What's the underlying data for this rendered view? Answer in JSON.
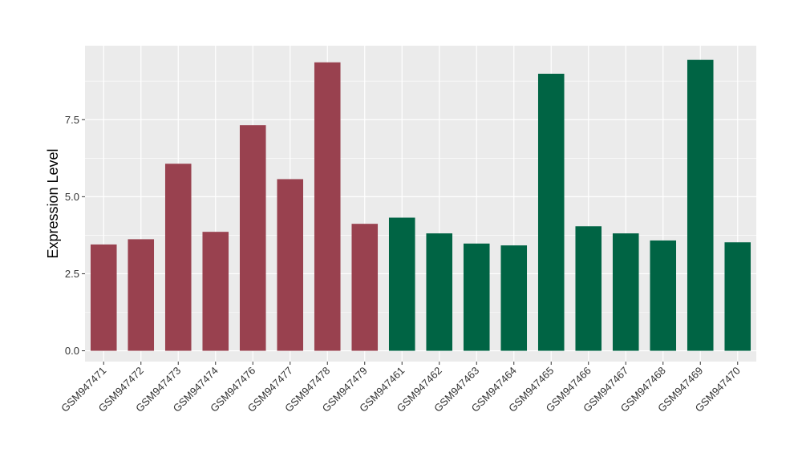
{
  "chart_data": {
    "type": "bar",
    "ylabel": "Expression Level",
    "xlabel": "",
    "ylim": [
      -0.35,
      9.9
    ],
    "yticks": [
      0.0,
      2.5,
      5.0,
      7.5
    ],
    "ytick_labels": [
      "0.0",
      "2.5",
      "5.0",
      "7.5"
    ],
    "grid": true,
    "categories": [
      "GSM947471",
      "GSM947472",
      "GSM947473",
      "GSM947474",
      "GSM947476",
      "GSM947477",
      "GSM947478",
      "GSM947479",
      "GSM947461",
      "GSM947462",
      "GSM947463",
      "GSM947464",
      "GSM947465",
      "GSM947466",
      "GSM947467",
      "GSM947468",
      "GSM947469",
      "GSM947470"
    ],
    "values": [
      3.45,
      3.62,
      6.07,
      3.86,
      7.32,
      5.57,
      9.36,
      4.12,
      4.32,
      3.81,
      3.48,
      3.42,
      8.99,
      4.04,
      3.81,
      3.58,
      9.44,
      3.52
    ],
    "groups": [
      1,
      1,
      1,
      1,
      1,
      1,
      1,
      1,
      2,
      2,
      2,
      2,
      2,
      2,
      2,
      2,
      2,
      2
    ],
    "colors": {
      "group1": "#99414f",
      "group2": "#006444",
      "panel": "#ebebeb",
      "grid": "#ffffff"
    }
  }
}
